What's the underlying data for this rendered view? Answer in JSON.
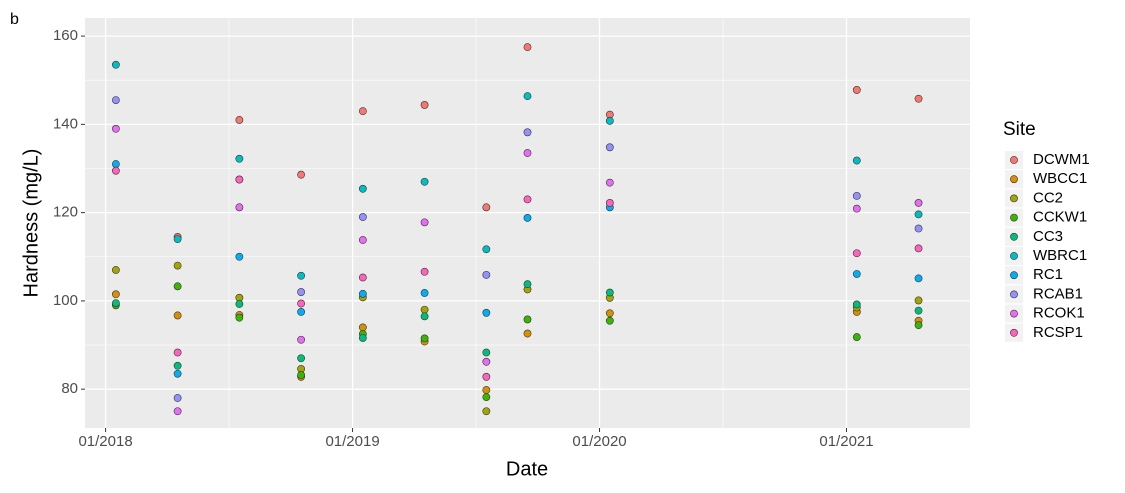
{
  "chart_data": {
    "type": "scatter",
    "title": "b",
    "x_label": "Date",
    "y_label": "Hardness (mg/L)",
    "legend_title": "Site",
    "legend_position": "right",
    "grid": true,
    "x": [
      "2018-01",
      "2018-04",
      "2018-07",
      "2018-10",
      "2019-01",
      "2019-04",
      "2019-07",
      "2019-09",
      "2020-01",
      "2021-01",
      "2021-04"
    ],
    "xlim": [
      "2017-12",
      "2021-07"
    ],
    "xticks": [
      {
        "value": "2018-01",
        "label": "01/2018"
      },
      {
        "value": "2019-01",
        "label": "01/2019"
      },
      {
        "value": "2020-01",
        "label": "01/2020"
      },
      {
        "value": "2021-01",
        "label": "01/2021"
      }
    ],
    "ylim": [
      71.2,
      164.1
    ],
    "yticks": [
      80,
      100,
      120,
      140,
      160
    ],
    "series": [
      {
        "name": "DCWM1",
        "color": "#F8766D",
        "values": [
          null,
          114.5,
          141,
          128.6,
          143,
          144.4,
          121.2,
          157.5,
          142.2,
          147.8,
          145.8
        ]
      },
      {
        "name": "WBCC1",
        "color": "#D89000",
        "values": [
          101.5,
          96.7,
          96.8,
          82.8,
          94,
          90.8,
          79.8,
          92.6,
          97.2,
          97.5,
          95.5
        ]
      },
      {
        "name": "CC2",
        "color": "#A3A500",
        "values": [
          107,
          108,
          100.7,
          84.6,
          100.8,
          98,
          75,
          102.6,
          100.7,
          98.5,
          100.1
        ]
      },
      {
        "name": "CCKW1",
        "color": "#39B600",
        "values": [
          99,
          103.3,
          96.2,
          83.2,
          92.5,
          91.5,
          78.2,
          95.8,
          95.5,
          91.8,
          94.5
        ]
      },
      {
        "name": "CC3",
        "color": "#00BF7D",
        "values": [
          99.5,
          85.3,
          99.3,
          87,
          91.6,
          96.5,
          88.3,
          103.8,
          101.9,
          99.2,
          97.8
        ]
      },
      {
        "name": "WBRC1",
        "color": "#00BFC4",
        "values": [
          153.5,
          114,
          132.2,
          105.7,
          125.4,
          127,
          111.7,
          146.4,
          140.8,
          131.8,
          119.6
        ]
      },
      {
        "name": "RC1",
        "color": "#00B0F6",
        "values": [
          131,
          83.5,
          110,
          97.5,
          101.6,
          101.8,
          97.3,
          118.8,
          121.2,
          106.1,
          105.1
        ]
      },
      {
        "name": "RCAB1",
        "color": "#9590FF",
        "values": [
          145.5,
          78,
          127.5,
          102,
          119,
          null,
          105.9,
          138.2,
          134.8,
          123.8,
          116.4
        ]
      },
      {
        "name": "RCOK1",
        "color": "#E76BF3",
        "values": [
          139,
          75,
          121.2,
          91.2,
          113.8,
          117.8,
          86.2,
          133.5,
          126.8,
          120.9,
          122.2
        ]
      },
      {
        "name": "RCSP1",
        "color": "#FF62BC",
        "values": [
          129.5,
          88.3,
          127.5,
          99.4,
          105.3,
          106.6,
          82.8,
          123,
          122.2,
          110.8,
          111.9
        ]
      }
    ]
  }
}
